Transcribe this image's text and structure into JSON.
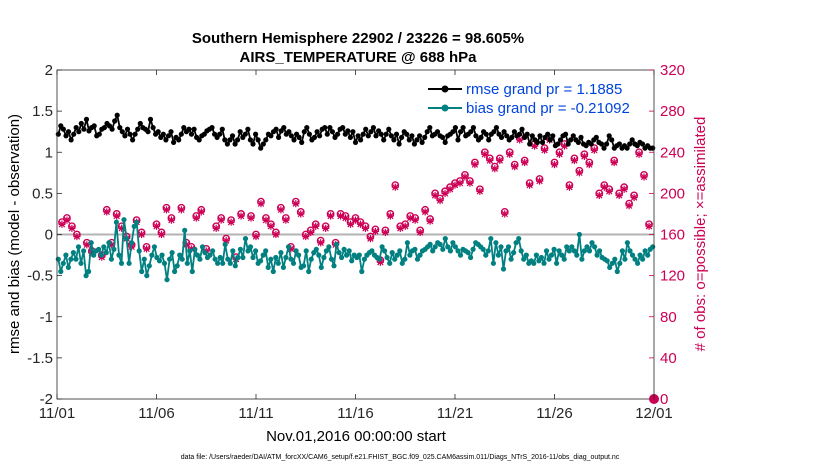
{
  "chart_data": {
    "type": "line",
    "title_line1": "Southern Hemisphere 22902 / 23226 = 98.605%",
    "title_line2": "AIRS_TEMPERATURE @ 688 hPa",
    "xlabel": "Nov.01,2016 00:00:00 start",
    "ylabel_left": "rmse and bias (model - observation)",
    "ylabel_right": "# of obs: o=possible; ×=assimilated",
    "footnote": "data file: /Users/raeder/DAI/ATM_forcXX/CAM6_setup/f.e21.FHIST_BGC.f09_025.CAM6assim.011/Diags_NTrS_2016-11/obs_diag_output.nc",
    "xlim": [
      0,
      30
    ],
    "x_ticks": [
      0,
      5,
      10,
      15,
      20,
      25,
      30
    ],
    "x_tick_labels": [
      "11/01",
      "11/06",
      "11/11",
      "11/16",
      "11/21",
      "11/26",
      "12/01"
    ],
    "ylim_left": [
      -2,
      2
    ],
    "y_ticks_left": [
      -2,
      -1.5,
      -1,
      -0.5,
      0,
      0.5,
      1,
      1.5,
      2
    ],
    "y_tick_labels_left": [
      "-2",
      "-1.5",
      "-1",
      "-0.5",
      "0",
      "0.5",
      "1",
      "1.5",
      "2"
    ],
    "ylim_right": [
      0,
      320
    ],
    "y_ticks_right": [
      0,
      40,
      80,
      120,
      160,
      200,
      240,
      280,
      320
    ],
    "y_tick_labels_right": [
      "0",
      "40",
      "80",
      "120",
      "160",
      "200",
      "240",
      "280",
      "320"
    ],
    "colors": {
      "rmse": "#000000",
      "bias": "#008080",
      "obs": "#cc0055",
      "zero_line": "#b3b3b3"
    },
    "series": [
      {
        "name": "rmse grand pr = 1.1885",
        "y": [
          1.22,
          1.32,
          1.28,
          1.2,
          1.25,
          1.15,
          1.22,
          1.3,
          1.25,
          1.35,
          1.28,
          1.4,
          1.26,
          1.3,
          1.32,
          1.2,
          1.22,
          1.28,
          1.3,
          1.35,
          1.32,
          1.28,
          1.38,
          1.45,
          1.3,
          1.25,
          1.2,
          1.28,
          1.22,
          1.15,
          1.22,
          1.28,
          1.35,
          1.3,
          1.28,
          1.25,
          1.4,
          1.3,
          1.22,
          1.25,
          1.18,
          1.22,
          1.15,
          1.2,
          1.25,
          1.12,
          1.18,
          1.15,
          1.22,
          1.3,
          1.25,
          1.28,
          1.22,
          1.28,
          1.18,
          1.15,
          1.2,
          1.22,
          1.26,
          1.28,
          1.3,
          1.22,
          1.18,
          1.22,
          1.28,
          1.15,
          1.1,
          1.15,
          1.2,
          1.1,
          1.15,
          1.25,
          1.18,
          1.22,
          1.28,
          1.15,
          1.1,
          1.22,
          1.15,
          1.05,
          1.1,
          1.15,
          1.22,
          1.2,
          1.25,
          1.28,
          1.18,
          1.26,
          1.3,
          1.22,
          1.25,
          1.2,
          1.15,
          1.22,
          1.18,
          1.12,
          1.25,
          1.3,
          1.22,
          1.15,
          1.18,
          1.25,
          1.2,
          1.28,
          1.3,
          1.22,
          1.3,
          1.25,
          1.18,
          1.22,
          1.28,
          1.3,
          1.22,
          1.26,
          1.18,
          1.25,
          1.12,
          1.2,
          1.15,
          1.22,
          1.28,
          1.2,
          1.25,
          1.3,
          1.2,
          1.26,
          1.22,
          1.15,
          1.22,
          1.28,
          1.2,
          1.15,
          1.22,
          1.1,
          1.18,
          1.25,
          1.22,
          1.15,
          1.2,
          1.1,
          1.15,
          1.2,
          1.12,
          1.18,
          1.25,
          1.3,
          1.2,
          1.22,
          1.25,
          1.2,
          1.18,
          1.12,
          1.2,
          1.22,
          1.25,
          1.3,
          1.15,
          1.25,
          1.3,
          1.2,
          1.22,
          1.25,
          1.3,
          1.2,
          1.15,
          1.18,
          1.25,
          1.22,
          1.15,
          1.22,
          1.25,
          1.3,
          1.22,
          1.18,
          1.25,
          1.2,
          1.15,
          1.18,
          1.25,
          1.2,
          1.22,
          1.28,
          1.18,
          1.22,
          1.1,
          1.2,
          1.15,
          1.12,
          1.2,
          1.12,
          1.18,
          1.22,
          1.15,
          1.2,
          1.08,
          1.1,
          1.15,
          1.2,
          1.22,
          1.1,
          1.15,
          1.2,
          1.15,
          1.12,
          1.18,
          1.1,
          1.08,
          1.12,
          1.1,
          1.15,
          1.18,
          1.12,
          1.1,
          1.05,
          1.1,
          1.2,
          1.15,
          1.05,
          1.08,
          1.1,
          1.05,
          1.08,
          1.05,
          1.1,
          1.15,
          1.1,
          1.08,
          1.12,
          1.1,
          1.05,
          1.08,
          1.05,
          1.05
        ]
      },
      {
        "name": "bias grand pr = -0.21092",
        "y": [
          -0.3,
          -0.45,
          -0.35,
          -0.25,
          -0.4,
          -0.3,
          -0.22,
          -0.3,
          -0.15,
          -0.35,
          -0.2,
          -0.5,
          -0.45,
          -0.1,
          -0.25,
          -0.2,
          -0.18,
          -0.25,
          -0.15,
          -0.22,
          -0.1,
          -0.3,
          -0.18,
          0.15,
          -0.25,
          -0.35,
          0.18,
          -0.05,
          -0.35,
          -0.1,
          0.1,
          0.15,
          -0.2,
          -0.45,
          -0.3,
          -0.5,
          -0.38,
          -0.25,
          -0.15,
          -0.28,
          -0.32,
          -0.25,
          -0.35,
          -0.55,
          -0.3,
          -0.22,
          -0.45,
          -0.38,
          -0.25,
          -0.3,
          0.05,
          -0.35,
          -0.2,
          -0.45,
          -0.18,
          -0.25,
          -0.3,
          -0.15,
          -0.22,
          -0.28,
          -0.25,
          -0.2,
          -0.3,
          -0.35,
          -0.28,
          -0.35,
          -0.12,
          -0.3,
          -0.35,
          -0.2,
          -0.38,
          -0.28,
          -0.18,
          -0.28,
          -0.05,
          -0.2,
          -0.15,
          -0.28,
          -0.2,
          -0.35,
          -0.32,
          -0.25,
          -0.2,
          -0.4,
          -0.3,
          -0.45,
          -0.28,
          -0.35,
          -0.22,
          -0.4,
          -0.28,
          -0.15,
          -0.3,
          -0.35,
          -0.2,
          -0.25,
          -0.4,
          -0.38,
          -0.2,
          -0.45,
          -0.3,
          -0.22,
          -0.18,
          -0.25,
          -0.4,
          -0.28,
          -0.2,
          -0.15,
          -0.3,
          -0.38,
          -0.12,
          -0.22,
          -0.28,
          -0.18,
          -0.25,
          -0.2,
          -0.32,
          -0.25,
          -0.28,
          -0.25,
          -0.45,
          -0.3,
          -0.25,
          -0.22,
          -0.2,
          -0.25,
          -0.28,
          -0.3,
          -0.15,
          -0.2,
          -0.28,
          -0.35,
          -0.22,
          -0.3,
          -0.25,
          -0.2,
          -0.35,
          -0.3,
          -0.1,
          -0.25,
          -0.2,
          -0.18,
          -0.3,
          -0.25,
          -0.2,
          -0.18,
          -0.15,
          -0.12,
          -0.2,
          -0.15,
          -0.1,
          -0.12,
          -0.18,
          -0.05,
          -0.15,
          -0.2,
          -0.1,
          -0.15,
          -0.2,
          -0.25,
          -0.18,
          -0.2,
          -0.22,
          -0.28,
          -0.18,
          -0.1,
          -0.12,
          -0.15,
          -0.18,
          -0.25,
          -0.2,
          -0.05,
          -0.35,
          -0.1,
          -0.25,
          -0.15,
          -0.42,
          -0.2,
          -0.15,
          -0.3,
          -0.22,
          -0.1,
          -0.05,
          -0.2,
          -0.3,
          -0.25,
          -0.35,
          -0.32,
          -0.35,
          -0.25,
          -0.32,
          -0.28,
          -0.35,
          -0.2,
          -0.3,
          -0.25,
          -0.18,
          -0.35,
          -0.2,
          -0.25,
          -0.3,
          -0.15,
          -0.2,
          -0.15,
          -0.2,
          -0.25,
          0.0,
          -0.3,
          -0.2,
          -0.15,
          -0.2,
          -0.1,
          -0.15,
          -0.25,
          -0.2,
          -0.28,
          -0.3,
          -0.32,
          -0.4,
          -0.35,
          -0.3,
          -0.45,
          -0.35,
          -0.2,
          -0.3,
          -0.1,
          -0.2,
          -0.25,
          -0.3,
          -0.35,
          -0.25,
          -0.3,
          -0.2,
          -0.25,
          -0.18,
          -0.15
        ]
      },
      {
        "name": "obs",
        "x": [
          0.25,
          0.5,
          0.75,
          1,
          1.5,
          1.75,
          2.25,
          2.5,
          2.75,
          3,
          3.25,
          3.5,
          3.75,
          4,
          4.25,
          4.5,
          5,
          5.25,
          5.5,
          5.75,
          6.25,
          6.5,
          6.75,
          7,
          7.25,
          7.5,
          8,
          8.25,
          8.5,
          8.75,
          9,
          9.25,
          9.75,
          10,
          10.25,
          10.5,
          10.75,
          11,
          11.25,
          11.5,
          11.75,
          12,
          12.25,
          12.5,
          12.75,
          13,
          13.25,
          13.5,
          13.75,
          14,
          14.25,
          14.5,
          14.75,
          15,
          15.25,
          15.5,
          15.75,
          16,
          16.25,
          16.5,
          16.75,
          17,
          17.25,
          17.5,
          17.75,
          18,
          18.25,
          18.5,
          18.75,
          19,
          19.25,
          19.5,
          19.75,
          20,
          20.25,
          20.5,
          20.75,
          21,
          21.25,
          21.5,
          21.75,
          22,
          22.25,
          22.5,
          22.75,
          23,
          23.25,
          23.5,
          23.75,
          24,
          24.25,
          24.5,
          24.75,
          25,
          25.25,
          25.5,
          25.75,
          26,
          26.25,
          26.5,
          26.75,
          27,
          27.25,
          27.5,
          27.75,
          28,
          28.25,
          28.5,
          28.75,
          29,
          29.25,
          29.5,
          29.75
        ],
        "possible": [
          172,
          176,
          168,
          160,
          152,
          144,
          140,
          184,
          152,
          180,
          168,
          158,
          150,
          174,
          162,
          148,
          170,
          162,
          186,
          176,
          186,
          152,
          148,
          178,
          184,
          146,
          168,
          176,
          156,
          174,
          138,
          180,
          178,
          160,
          192,
          176,
          170,
          162,
          186,
          176,
          148,
          192,
          182,
          160,
          164,
          170,
          154,
          168,
          180,
          152,
          180,
          178,
          172,
          176,
          172,
          168,
          158,
          165,
          135,
          164,
          180,
          208,
          168,
          170,
          178,
          176,
          164,
          184,
          175,
          200,
          195,
          202,
          206,
          210,
          212,
          218,
          212,
          230,
          204,
          240,
          234,
          226,
          234,
          182,
          240,
          228,
          254,
          232,
          210,
          248,
          214,
          244,
          254,
          230,
          240,
          248,
          208,
          234,
          222,
          238,
          230,
          244,
          200,
          208,
          204,
          232,
          200,
          206,
          190,
          198,
          240,
          218,
          170,
          212
        ],
        "assimilated": [
          170,
          174,
          166,
          158,
          150,
          142,
          138,
          182,
          150,
          178,
          166,
          156,
          148,
          172,
          160,
          146,
          168,
          160,
          184,
          174,
          184,
          150,
          146,
          176,
          182,
          144,
          166,
          174,
          154,
          172,
          136,
          178,
          176,
          158,
          190,
          174,
          168,
          160,
          184,
          174,
          146,
          190,
          180,
          158,
          162,
          168,
          152,
          166,
          178,
          150,
          178,
          176,
          170,
          174,
          170,
          166,
          156,
          163,
          133,
          162,
          178,
          206,
          166,
          168,
          176,
          174,
          162,
          182,
          173,
          198,
          193,
          200,
          204,
          208,
          210,
          216,
          210,
          228,
          202,
          238,
          232,
          224,
          232,
          180,
          238,
          226,
          252,
          230,
          208,
          246,
          212,
          242,
          252,
          228,
          238,
          246,
          206,
          232,
          220,
          236,
          228,
          242,
          198,
          206,
          202,
          230,
          198,
          204,
          188,
          196,
          238,
          216,
          168,
          210
        ]
      }
    ],
    "total_obs_marker": {
      "x": 30,
      "y_right": 0
    }
  }
}
